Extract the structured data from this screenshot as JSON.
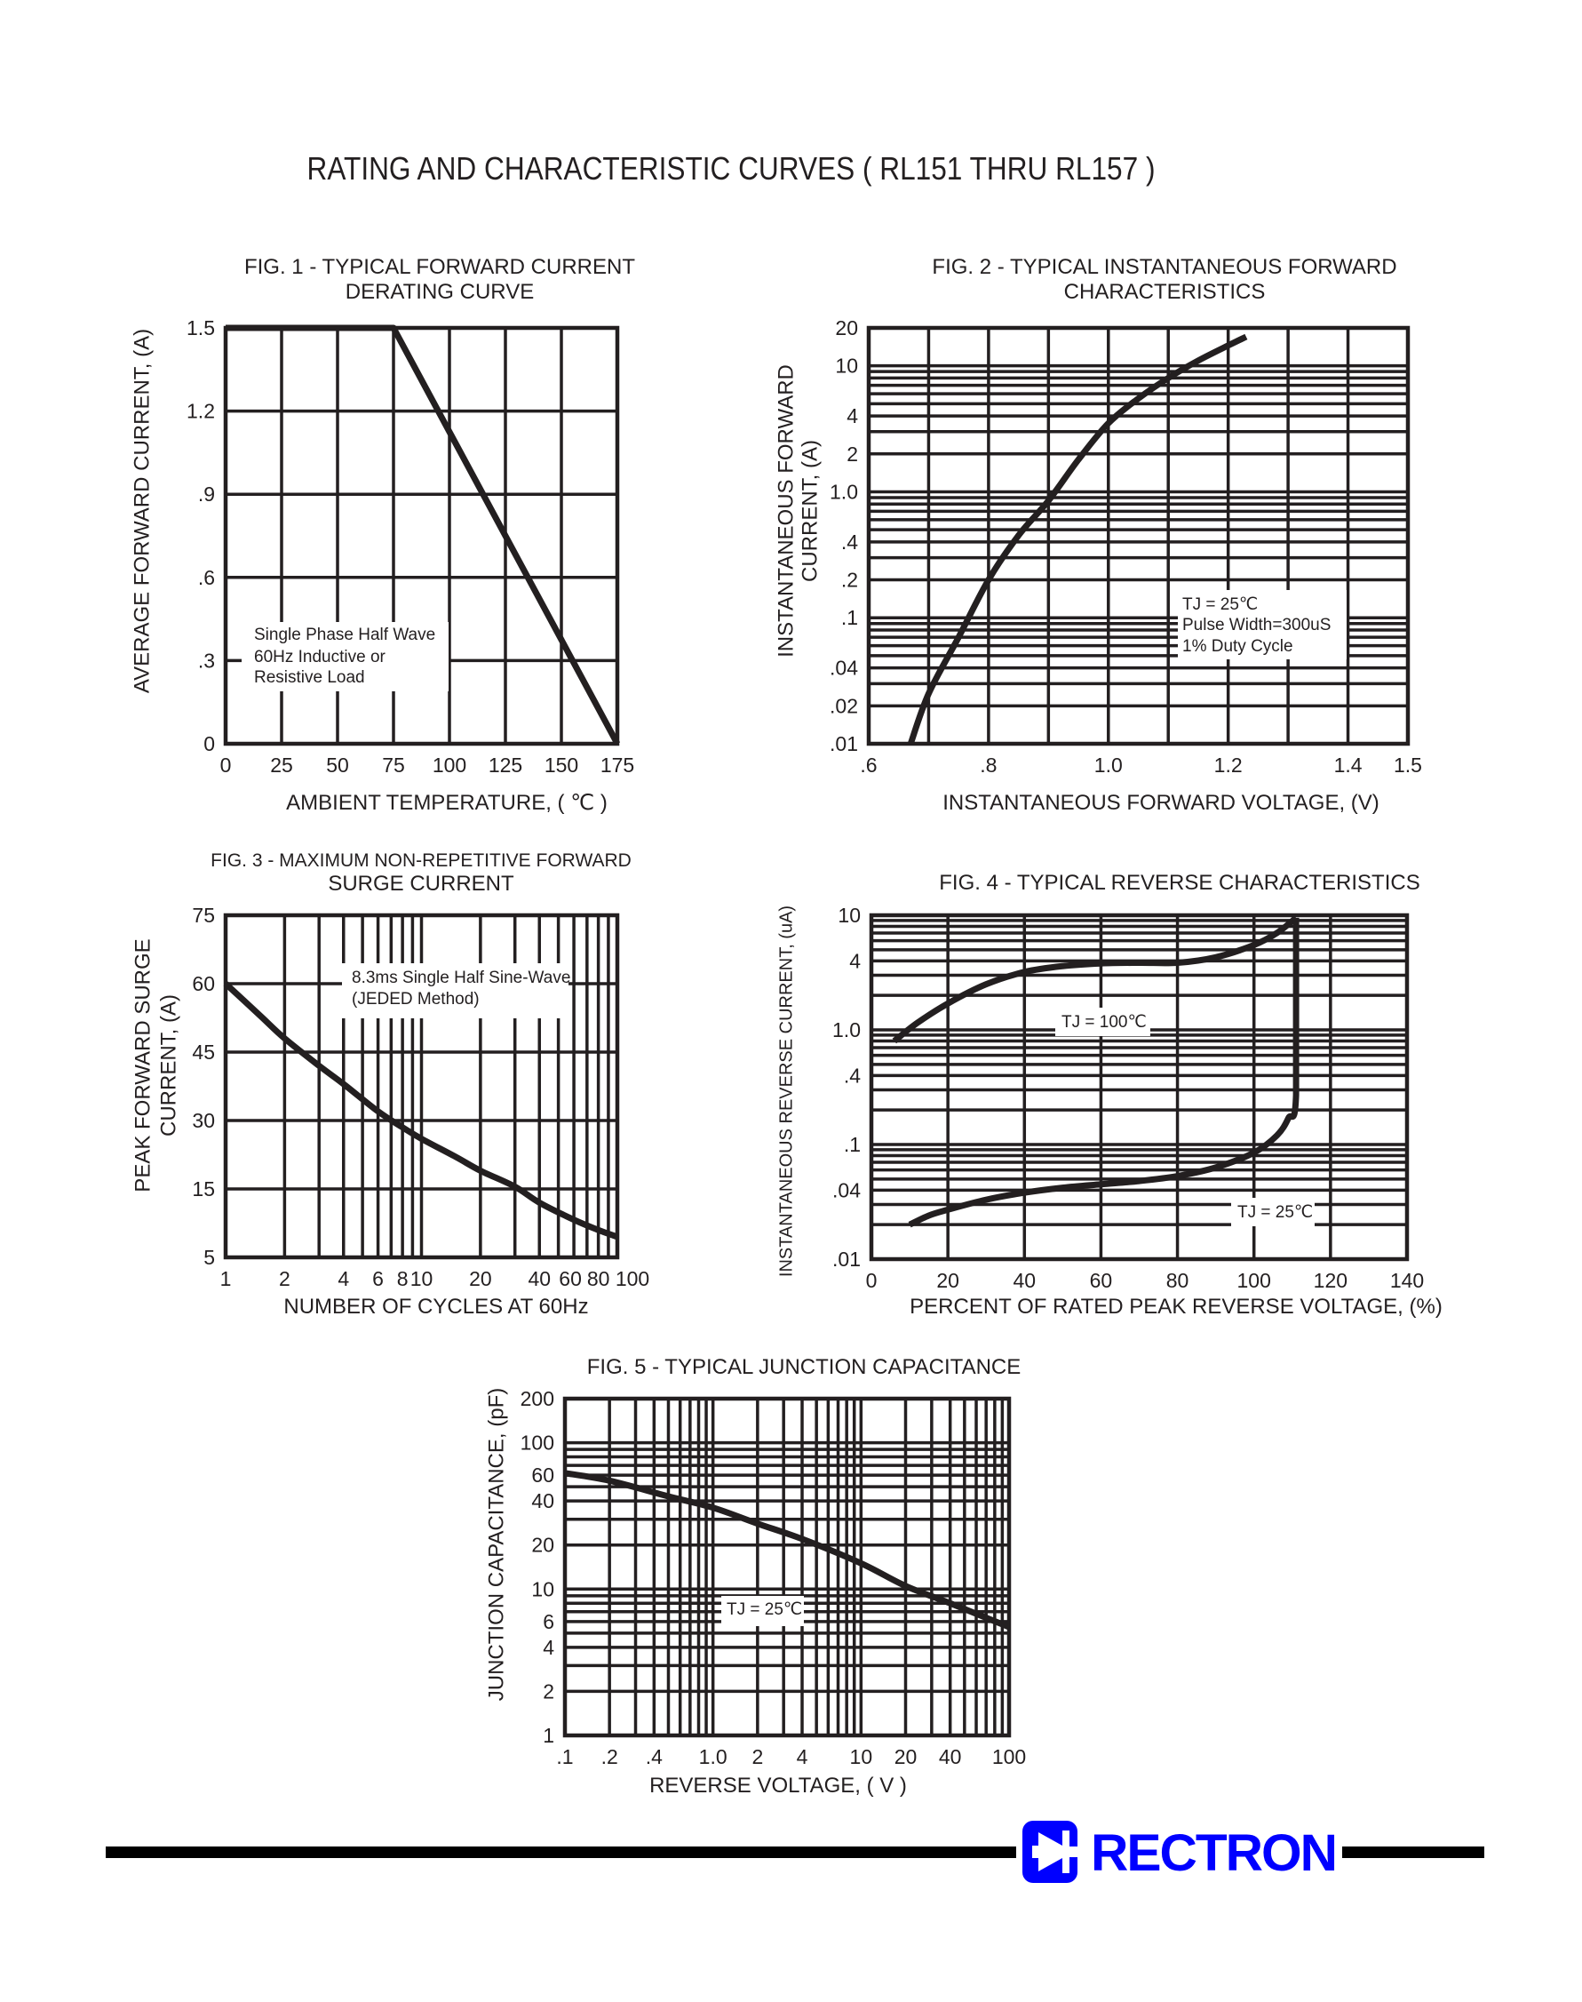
{
  "page": {
    "title": "RATING AND CHARACTERISTIC CURVES ( RL151 THRU RL157 )"
  },
  "chart_data": [
    {
      "type": "line",
      "title_lines": [
        "FIG. 1 - TYPICAL FORWARD CURRENT",
        "DERATING CURVE"
      ],
      "xlabel": "AMBIENT TEMPERATURE, ( ℃ )",
      "ylabel_lines": [
        "AVERAGE FORWARD CURRENT, (A)"
      ],
      "xscale": "linear",
      "yscale": "linear",
      "xlim": [
        0,
        175
      ],
      "ylim": [
        0,
        1.5
      ],
      "grid": true,
      "x_ticks": [
        {
          "value": 0,
          "label": "0"
        },
        {
          "value": 25,
          "label": "25"
        },
        {
          "value": 50,
          "label": "50"
        },
        {
          "value": 75,
          "label": "75"
        },
        {
          "value": 100,
          "label": "100"
        },
        {
          "value": 125,
          "label": "125"
        },
        {
          "value": 150,
          "label": "150"
        },
        {
          "value": 175,
          "label": "175"
        }
      ],
      "y_ticks": [
        {
          "value": 0,
          "label": "0"
        },
        {
          "value": 0.3,
          "label": ".3"
        },
        {
          "value": 0.6,
          "label": ".6"
        },
        {
          "value": 0.9,
          "label": ".9"
        },
        {
          "value": 1.2,
          "label": "1.2"
        },
        {
          "value": 1.5,
          "label": "1.5"
        }
      ],
      "annotations": [
        {
          "lines": [
            "Single Phase Half Wave",
            "60Hz Inductive or",
            "Resistive Load"
          ]
        }
      ],
      "series": [
        {
          "x": [
            0,
            75,
            175
          ],
          "y": [
            1.5,
            1.5,
            0
          ]
        }
      ]
    },
    {
      "type": "line",
      "title_lines": [
        "FIG. 2 - TYPICAL INSTANTANEOUS FORWARD",
        "CHARACTERISTICS"
      ],
      "xlabel": "INSTANTANEOUS FORWARD VOLTAGE, (V)",
      "ylabel_lines": [
        "INSTANTANEOUS FORWARD",
        "CURRENT, (A)"
      ],
      "xscale": "linear",
      "yscale": "log",
      "xlim": [
        0.6,
        1.5
      ],
      "ylim": [
        0.01,
        20
      ],
      "grid": true,
      "x_ticks": [
        {
          "value": 0.6,
          "label": ".6"
        },
        {
          "value": 0.8,
          "label": ".8"
        },
        {
          "value": 1.0,
          "label": "1.0"
        },
        {
          "value": 1.2,
          "label": "1.2"
        },
        {
          "value": 1.4,
          "label": "1.4"
        },
        {
          "value": 1.5,
          "label": "1.5"
        }
      ],
      "y_ticks": [
        {
          "value": 0.01,
          "label": ".01"
        },
        {
          "value": 0.02,
          "label": ".02"
        },
        {
          "value": 0.04,
          "label": ".04"
        },
        {
          "value": 0.1,
          "label": ".1"
        },
        {
          "value": 0.2,
          "label": ".2"
        },
        {
          "value": 0.4,
          "label": ".4"
        },
        {
          "value": 1,
          "label": "1.0"
        },
        {
          "value": 2,
          "label": "2"
        },
        {
          "value": 4,
          "label": "4"
        },
        {
          "value": 10,
          "label": "10"
        },
        {
          "value": 20,
          "label": "20"
        }
      ],
      "annotations": [
        {
          "lines": [
            "TJ = 25℃",
            "Pulse Width=300uS",
            "1% Duty Cycle"
          ]
        }
      ],
      "series": [
        {
          "x": [
            0.67,
            0.7,
            0.75,
            0.8,
            0.85,
            0.9,
            0.95,
            1.0,
            1.05,
            1.1,
            1.15,
            1.2,
            1.23
          ],
          "y": [
            0.01,
            0.025,
            0.07,
            0.2,
            0.45,
            0.85,
            1.8,
            3.5,
            5.5,
            8,
            11,
            14.5,
            17
          ]
        }
      ]
    },
    {
      "type": "line",
      "title_lines": [
        "FIG. 3 - MAXIMUM NON-REPETITIVE FORWARD",
        "SURGE CURRENT"
      ],
      "xlabel": "NUMBER OF CYCLES AT 60Hz",
      "ylabel_lines": [
        "PEAK FORWARD SURGE",
        "CURRENT, (A)"
      ],
      "xscale": "log",
      "yscale": "linear",
      "xlim": [
        1,
        100
      ],
      "ylim": [
        5,
        75
      ],
      "grid": true,
      "x_ticks": [
        {
          "value": 1,
          "label": "1"
        },
        {
          "value": 2,
          "label": "2"
        },
        {
          "value": 4,
          "label": "4"
        },
        {
          "value": 6,
          "label": "6"
        },
        {
          "value": 8,
          "label": "8"
        },
        {
          "value": 10,
          "label": "10"
        },
        {
          "value": 20,
          "label": "20"
        },
        {
          "value": 40,
          "label": "40"
        },
        {
          "value": 60,
          "label": "60"
        },
        {
          "value": 80,
          "label": "80"
        },
        {
          "value": 100,
          "label": "100"
        }
      ],
      "y_ticks": [
        {
          "value": 5,
          "label": "5"
        },
        {
          "value": 15,
          "label": "15"
        },
        {
          "value": 30,
          "label": "30"
        },
        {
          "value": 45,
          "label": "45"
        },
        {
          "value": 60,
          "label": "60"
        },
        {
          "value": 75,
          "label": "75"
        }
      ],
      "annotations": [
        {
          "lines": [
            "8.3ms Single Half Sine-Wave",
            "(JEDED Method)"
          ]
        }
      ],
      "series": [
        {
          "x": [
            1,
            1.5,
            2,
            3,
            4,
            6,
            8,
            10,
            15,
            20,
            30,
            40,
            60,
            80,
            100
          ],
          "y": [
            60,
            53,
            48,
            42,
            38,
            32,
            28.5,
            26,
            22,
            19,
            15.5,
            13,
            10.5,
            9,
            8
          ]
        }
      ]
    },
    {
      "type": "line",
      "title_lines": [
        "FIG. 4 - TYPICAL REVERSE CHARACTERISTICS"
      ],
      "xlabel": "PERCENT OF RATED PEAK REVERSE VOLTAGE, (%)",
      "ylabel_lines": [
        "INSTANTANEOUS REVERSE CURRENT, (uA)"
      ],
      "xscale": "linear",
      "yscale": "log",
      "xlim": [
        0,
        140
      ],
      "ylim": [
        0.01,
        10
      ],
      "grid": true,
      "x_ticks": [
        {
          "value": 0,
          "label": "0"
        },
        {
          "value": 20,
          "label": "20"
        },
        {
          "value": 40,
          "label": "40"
        },
        {
          "value": 60,
          "label": "60"
        },
        {
          "value": 80,
          "label": "80"
        },
        {
          "value": 100,
          "label": "100"
        },
        {
          "value": 120,
          "label": "120"
        },
        {
          "value": 140,
          "label": "140"
        }
      ],
      "y_ticks": [
        {
          "value": 0.01,
          "label": ".01"
        },
        {
          "value": 0.04,
          "label": ".04"
        },
        {
          "value": 0.1,
          "label": ".1"
        },
        {
          "value": 0.4,
          "label": ".4"
        },
        {
          "value": 1,
          "label": "1.0"
        },
        {
          "value": 4,
          "label": "4"
        },
        {
          "value": 10,
          "label": "10"
        }
      ],
      "annotations": [
        {
          "lines": [
            "TJ = 100℃"
          ]
        },
        {
          "lines": [
            "TJ = 25℃"
          ]
        }
      ],
      "series": [
        {
          "name": "TJ = 100℃",
          "x": [
            6,
            12,
            20,
            30,
            40,
            50,
            60,
            70,
            80,
            90,
            100,
            106,
            111
          ],
          "y": [
            0.8,
            1.15,
            1.7,
            2.5,
            3.2,
            3.6,
            3.8,
            3.85,
            3.85,
            4.3,
            5.5,
            7,
            9.5
          ]
        },
        {
          "name": "TJ = 25℃",
          "x": [
            10,
            15,
            20,
            30,
            40,
            50,
            60,
            70,
            80,
            90,
            100,
            106,
            109,
            111,
            111
          ],
          "y": [
            0.02,
            0.024,
            0.027,
            0.033,
            0.038,
            0.042,
            0.045,
            0.048,
            0.053,
            0.063,
            0.085,
            0.12,
            0.17,
            0.27,
            9.5
          ]
        }
      ]
    },
    {
      "type": "line",
      "title_lines": [
        "FIG. 5 - TYPICAL JUNCTION CAPACITANCE"
      ],
      "xlabel": "REVERSE VOLTAGE, ( V )",
      "ylabel_lines": [
        "JUNCTION CAPACITANCE, (pF)"
      ],
      "xscale": "log",
      "yscale": "log",
      "xlim": [
        0.1,
        100
      ],
      "ylim": [
        1,
        200
      ],
      "grid": true,
      "x_ticks": [
        {
          "value": 0.1,
          "label": ".1"
        },
        {
          "value": 0.2,
          "label": ".2"
        },
        {
          "value": 0.4,
          "label": ".4"
        },
        {
          "value": 1,
          "label": "1.0"
        },
        {
          "value": 2,
          "label": "2"
        },
        {
          "value": 4,
          "label": "4"
        },
        {
          "value": 10,
          "label": "10"
        },
        {
          "value": 20,
          "label": "20"
        },
        {
          "value": 40,
          "label": "40"
        },
        {
          "value": 100,
          "label": "100"
        }
      ],
      "y_ticks": [
        {
          "value": 1,
          "label": "1"
        },
        {
          "value": 2,
          "label": "2"
        },
        {
          "value": 4,
          "label": "4"
        },
        {
          "value": 6,
          "label": "6"
        },
        {
          "value": 10,
          "label": "10"
        },
        {
          "value": 20,
          "label": "20"
        },
        {
          "value": 40,
          "label": "40"
        },
        {
          "value": 60,
          "label": "60"
        },
        {
          "value": 100,
          "label": "100"
        },
        {
          "value": 200,
          "label": "200"
        }
      ],
      "annotations": [
        {
          "lines": [
            "TJ = 25℃"
          ]
        }
      ],
      "series": [
        {
          "x": [
            0.1,
            0.2,
            0.5,
            1,
            2,
            4,
            10,
            20,
            40,
            100
          ],
          "y": [
            62,
            55,
            43,
            36,
            28,
            22,
            15,
            10.5,
            8,
            5.5
          ]
        }
      ]
    }
  ],
  "footer": {
    "brand": "RECTRON",
    "brand_color": "#0000FF",
    "logo_icon": "diode-icon"
  }
}
